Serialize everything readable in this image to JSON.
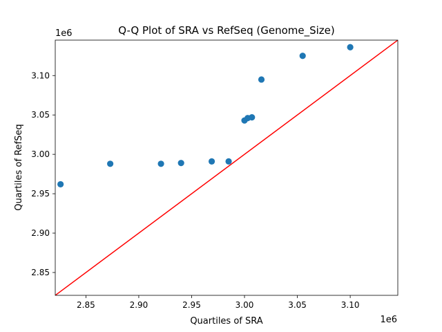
{
  "chart_data": {
    "type": "scatter",
    "title": "Q-Q Plot of SRA vs RefSeq (Genome_Size)",
    "xlabel": "Quartiles of SRA",
    "ylabel": "Quartiles of RefSeq",
    "x_offset_label": "1e6",
    "y_offset_label": "1e6",
    "xlim": [
      2.821,
      3.145
    ],
    "ylim": [
      2.821,
      3.145
    ],
    "xticks": [
      2.85,
      2.9,
      2.95,
      3.0,
      3.05,
      3.1
    ],
    "xtick_labels": [
      "2.85",
      "2.90",
      "2.95",
      "3.00",
      "3.05",
      "3.10"
    ],
    "yticks": [
      2.85,
      2.9,
      2.95,
      3.0,
      3.05,
      3.1
    ],
    "ytick_labels": [
      "2.85",
      "2.90",
      "2.95",
      "3.00",
      "3.05",
      "3.10"
    ],
    "grid": false,
    "point_color": "#1f77b4",
    "line_color": "#ff0000",
    "reference_line": "y = x",
    "points": [
      {
        "x": 2.826,
        "y": 2.962
      },
      {
        "x": 2.873,
        "y": 2.988
      },
      {
        "x": 2.921,
        "y": 2.988
      },
      {
        "x": 2.94,
        "y": 2.989
      },
      {
        "x": 2.969,
        "y": 2.991
      },
      {
        "x": 2.985,
        "y": 2.991
      },
      {
        "x": 3.0,
        "y": 3.043
      },
      {
        "x": 3.003,
        "y": 3.046
      },
      {
        "x": 3.007,
        "y": 3.047
      },
      {
        "x": 3.016,
        "y": 3.095
      },
      {
        "x": 3.055,
        "y": 3.125
      },
      {
        "x": 3.1,
        "y": 3.136
      }
    ]
  }
}
